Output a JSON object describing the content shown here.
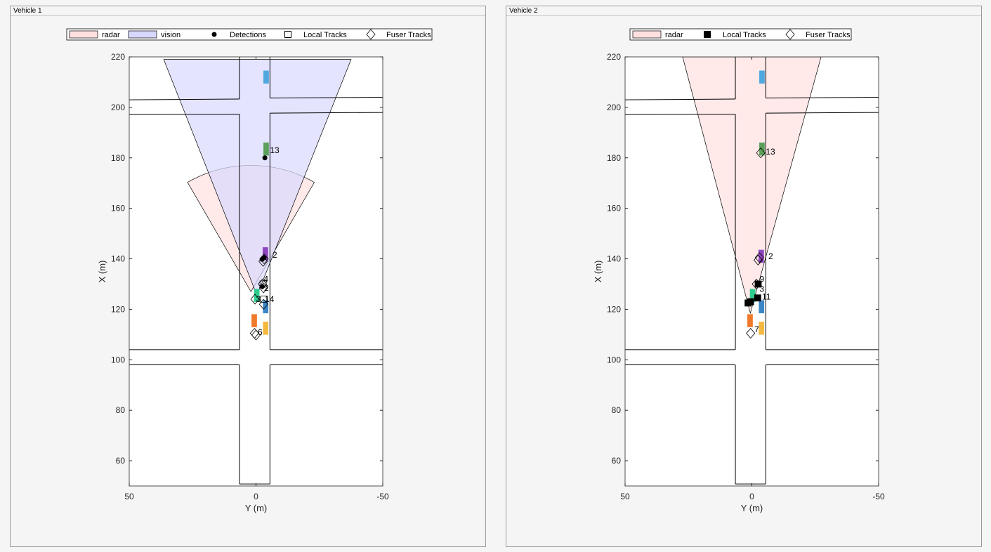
{
  "chart_data": [
    {
      "type": "scatter",
      "panel_title": "Vehicle 1",
      "xlabel": "Y (m)",
      "ylabel": "X (m)",
      "xlim": [
        50,
        -50
      ],
      "ylim": [
        50,
        220
      ],
      "xticks": [
        "50",
        "0",
        "-50"
      ],
      "yticks": [
        "60",
        "80",
        "100",
        "120",
        "140",
        "160",
        "180",
        "200",
        "220"
      ],
      "legend": [
        "radar",
        "vision",
        "Detections",
        "Local Tracks",
        "Fuser Tracks"
      ],
      "legend_position": "top",
      "sensors": [
        {
          "name": "radar",
          "color": "#ffe0e0",
          "apex": [
            127,
            2
          ],
          "range": 50,
          "half_angle_deg": 30,
          "shape": "sector"
        },
        {
          "name": "vision",
          "color": "#d8d8ff",
          "apex": [
            125.5,
            -0.4
          ],
          "corners": [
            [
              219,
              36.4
            ],
            [
              219,
              -37.5
            ]
          ],
          "shape": "wedge"
        }
      ],
      "vehicles": [
        {
          "x": 212,
          "y": -4,
          "color": "#4fa8e0"
        },
        {
          "x": 183.5,
          "y": -4,
          "color": "#5aa05a"
        },
        {
          "x": 142,
          "y": -3.7,
          "color": "#8e44c0"
        },
        {
          "x": 125.5,
          "y": -0.3,
          "color": "#2ecc8f"
        },
        {
          "x": 121,
          "y": -3.8,
          "color": "#3a86c8"
        },
        {
          "x": 115.5,
          "y": 0.7,
          "color": "#f07a2a"
        },
        {
          "x": 112.5,
          "y": -3.8,
          "color": "#f5b942"
        }
      ],
      "detections": [
        [
          180,
          -3.5
        ],
        [
          140.5,
          -3.2
        ],
        [
          139.8,
          -2.4
        ],
        [
          129,
          -2.5
        ]
      ],
      "local_tracks": [
        [
          130,
          -2.8
        ],
        [
          124,
          -3
        ]
      ],
      "fuser_tracks": [
        [
          140,
          -3.2
        ],
        [
          139,
          -2.8
        ],
        [
          130,
          -2.5
        ],
        [
          128.5,
          -3
        ],
        [
          124,
          0.4
        ],
        [
          122,
          -3
        ],
        [
          110.5,
          0.6
        ],
        [
          109.8,
          0
        ]
      ],
      "track_labels": [
        {
          "text": "13",
          "x": 183,
          "y": -5.5
        },
        {
          "text": "2",
          "x": 141.5,
          "y": -6.5
        },
        {
          "text": "4",
          "x": 132,
          "y": -3
        },
        {
          "text": "2",
          "x": 128.5,
          "y": -3.2
        },
        {
          "text": "3",
          "x": 124,
          "y": 0
        },
        {
          "text": "14",
          "x": 124,
          "y": -3.5
        },
        {
          "text": "6",
          "x": 111,
          "y": -0.7
        }
      ]
    },
    {
      "type": "scatter",
      "panel_title": "Vehicle 2",
      "xlabel": "Y (m)",
      "ylabel": "X (m)",
      "xlim": [
        50,
        -50
      ],
      "ylim": [
        50,
        220
      ],
      "xticks": [
        "50",
        "0",
        "-50"
      ],
      "yticks": [
        "60",
        "80",
        "100",
        "120",
        "140",
        "160",
        "180",
        "200",
        "220"
      ],
      "legend": [
        "radar",
        "Local Tracks",
        "Fuser Tracks"
      ],
      "legend_position": "top",
      "sensors": [
        {
          "name": "radar",
          "color": "#ffe0e0",
          "apex": [
            118.5,
            0.6
          ],
          "corners": [
            [
              220,
              27.3
            ],
            [
              220,
              -27.3
            ]
          ],
          "shape": "wedge"
        }
      ],
      "vehicles": [
        {
          "x": 212,
          "y": -4,
          "color": "#4fa8e0"
        },
        {
          "x": 183.5,
          "y": -4,
          "color": "#5aa05a"
        },
        {
          "x": 141,
          "y": -3.7,
          "color": "#8e44c0"
        },
        {
          "x": 125.5,
          "y": -0.3,
          "color": "#2ecc8f"
        },
        {
          "x": 121,
          "y": -3.8,
          "color": "#3a86c8"
        },
        {
          "x": 115.5,
          "y": 0.7,
          "color": "#f07a2a"
        },
        {
          "x": 112.5,
          "y": -3.8,
          "color": "#f5b942"
        }
      ],
      "detections": [],
      "local_tracks_filled": true,
      "local_tracks": [
        [
          130,
          -2.5
        ],
        [
          124.5,
          -2.3
        ],
        [
          123,
          0.5
        ],
        [
          122.5,
          1.5
        ]
      ],
      "fuser_tracks": [
        [
          182,
          -3.5
        ],
        [
          140.5,
          -3
        ],
        [
          139.5,
          -2.5
        ],
        [
          130,
          -1.8
        ],
        [
          110.5,
          0.5
        ]
      ],
      "track_labels": [
        {
          "text": "13",
          "x": 182.5,
          "y": -5.5
        },
        {
          "text": "2",
          "x": 141,
          "y": -6.5
        },
        {
          "text": "9",
          "x": 132,
          "y": -3
        },
        {
          "text": "3",
          "x": 128,
          "y": -3
        },
        {
          "text": "11",
          "x": 125,
          "y": -4
        },
        {
          "text": "7",
          "x": 112,
          "y": -1
        }
      ]
    }
  ],
  "road_lines": [
    [
      [
        6.5,
        50.8
      ],
      [
        6.5,
        98
      ]
    ],
    [
      [
        6.5,
        104
      ],
      [
        6.5,
        197.3
      ]
    ],
    [
      [
        6.5,
        203.3
      ],
      [
        6.5,
        220
      ]
    ],
    [
      [
        -5.5,
        50.8
      ],
      [
        -5.5,
        98
      ]
    ],
    [
      [
        -5.5,
        104
      ],
      [
        -5.5,
        197.7
      ]
    ],
    [
      [
        -5.5,
        203.7
      ],
      [
        -5.5,
        220
      ]
    ],
    [
      [
        6.5,
        50.8
      ],
      [
        -5.5,
        50.8
      ]
    ],
    [
      [
        50,
        203
      ],
      [
        6.5,
        203.3
      ]
    ],
    [
      [
        -5.5,
        203.7
      ],
      [
        -50,
        204
      ]
    ],
    [
      [
        50,
        197.2
      ],
      [
        6.5,
        197.3
      ]
    ],
    [
      [
        -5.5,
        197.7
      ],
      [
        -50,
        198
      ]
    ],
    [
      [
        50,
        104
      ],
      [
        6.5,
        104
      ]
    ],
    [
      [
        -5.5,
        104
      ],
      [
        -50,
        104
      ]
    ],
    [
      [
        50,
        98
      ],
      [
        6.5,
        98
      ]
    ],
    [
      [
        -5.5,
        98
      ],
      [
        -50,
        98
      ]
    ]
  ]
}
